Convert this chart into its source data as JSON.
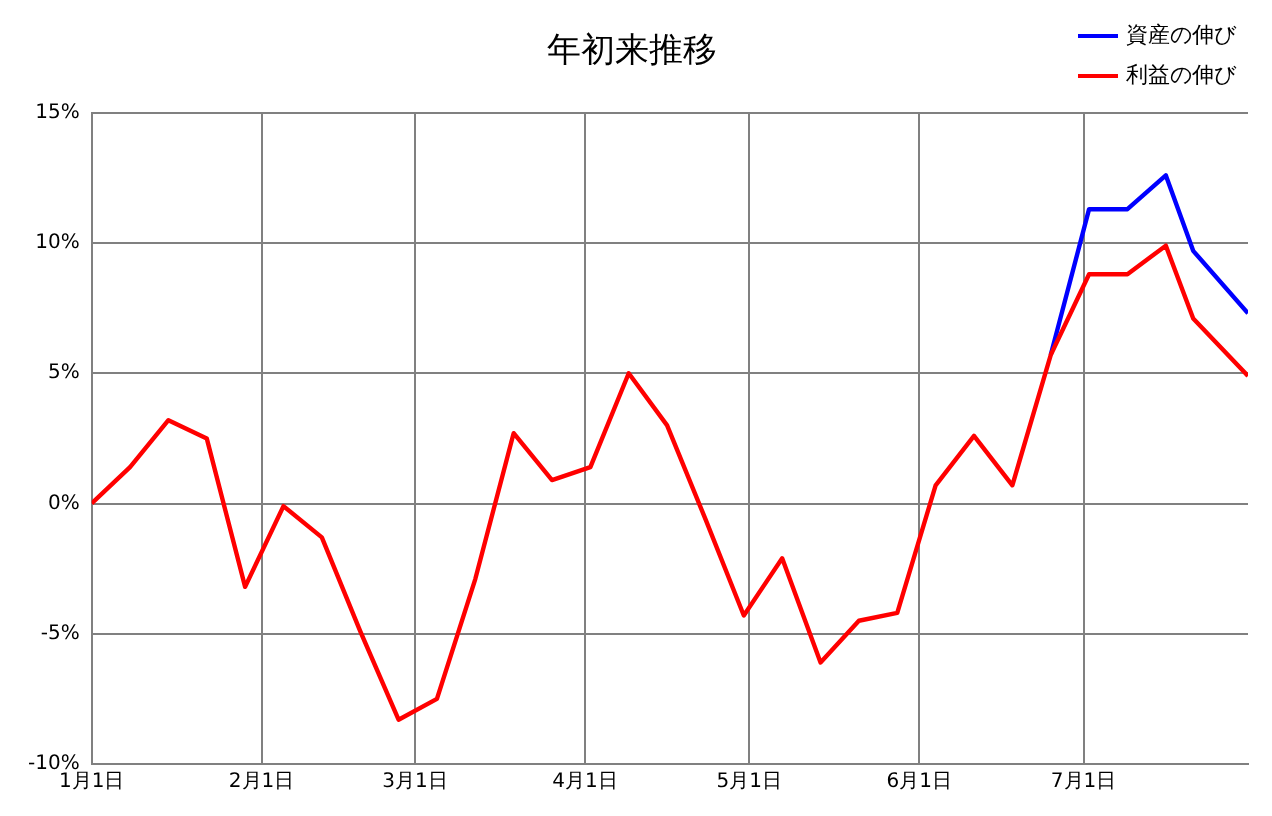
{
  "chart_data": {
    "type": "line",
    "title": "年初来推移",
    "x": [
      "--01-01",
      "--01-08",
      "--01-15",
      "--01-22",
      "--01-29",
      "--02-05",
      "--02-12",
      "--02-19",
      "--02-26",
      "--03-05",
      "--03-12",
      "--03-19",
      "--03-26",
      "--04-02",
      "--04-09",
      "--04-16",
      "--04-23",
      "--04-30",
      "--05-07",
      "--05-14",
      "--05-21",
      "--05-28",
      "--06-04",
      "--06-11",
      "--06-18",
      "--06-25",
      "--07-02",
      "--07-09",
      "--07-16",
      "--07-21",
      "--07-31"
    ],
    "series": [
      {
        "name": "資産の伸び",
        "color": "#0000ff",
        "values": [
          null,
          null,
          null,
          null,
          null,
          null,
          null,
          null,
          null,
          null,
          null,
          null,
          null,
          null,
          null,
          null,
          null,
          null,
          null,
          null,
          null,
          null,
          null,
          null,
          null,
          5.7,
          11.3,
          11.3,
          12.6,
          9.7,
          7.3
        ]
      },
      {
        "name": "利益の伸び",
        "color": "#ff0000",
        "values": [
          0,
          1.4,
          3.2,
          2.5,
          -3.2,
          -0.1,
          -1.3,
          -4.9,
          -8.3,
          -7.5,
          -2.9,
          2.7,
          0.9,
          1.4,
          5.0,
          3.0,
          -0.6,
          -4.3,
          -2.1,
          -6.1,
          -4.5,
          -4.2,
          0.7,
          2.6,
          0.7,
          5.7,
          8.8,
          8.8,
          9.9,
          7.1,
          4.9
        ]
      }
    ],
    "xlim": [
      "--01-01",
      "--07-31"
    ],
    "xticks": [
      {
        "value": "--01-01",
        "label": "1月1日"
      },
      {
        "value": "--02-01",
        "label": "2月1日"
      },
      {
        "value": "--03-01",
        "label": "3月1日"
      },
      {
        "value": "--04-01",
        "label": "4月1日"
      },
      {
        "value": "--05-01",
        "label": "5月1日"
      },
      {
        "value": "--06-01",
        "label": "6月1日"
      },
      {
        "value": "--07-01",
        "label": "7月1日"
      }
    ],
    "ylim": [
      -10,
      15
    ],
    "yticks": [
      {
        "value": -10,
        "label": "-10%"
      },
      {
        "value": -5,
        "label": "-5%"
      },
      {
        "value": 0,
        "label": "0%"
      },
      {
        "value": 5,
        "label": "5%"
      },
      {
        "value": 10,
        "label": "10%"
      },
      {
        "value": 15,
        "label": "15%"
      }
    ],
    "grid": true,
    "legend": "top right",
    "marker": "none",
    "line_style": "solid"
  }
}
